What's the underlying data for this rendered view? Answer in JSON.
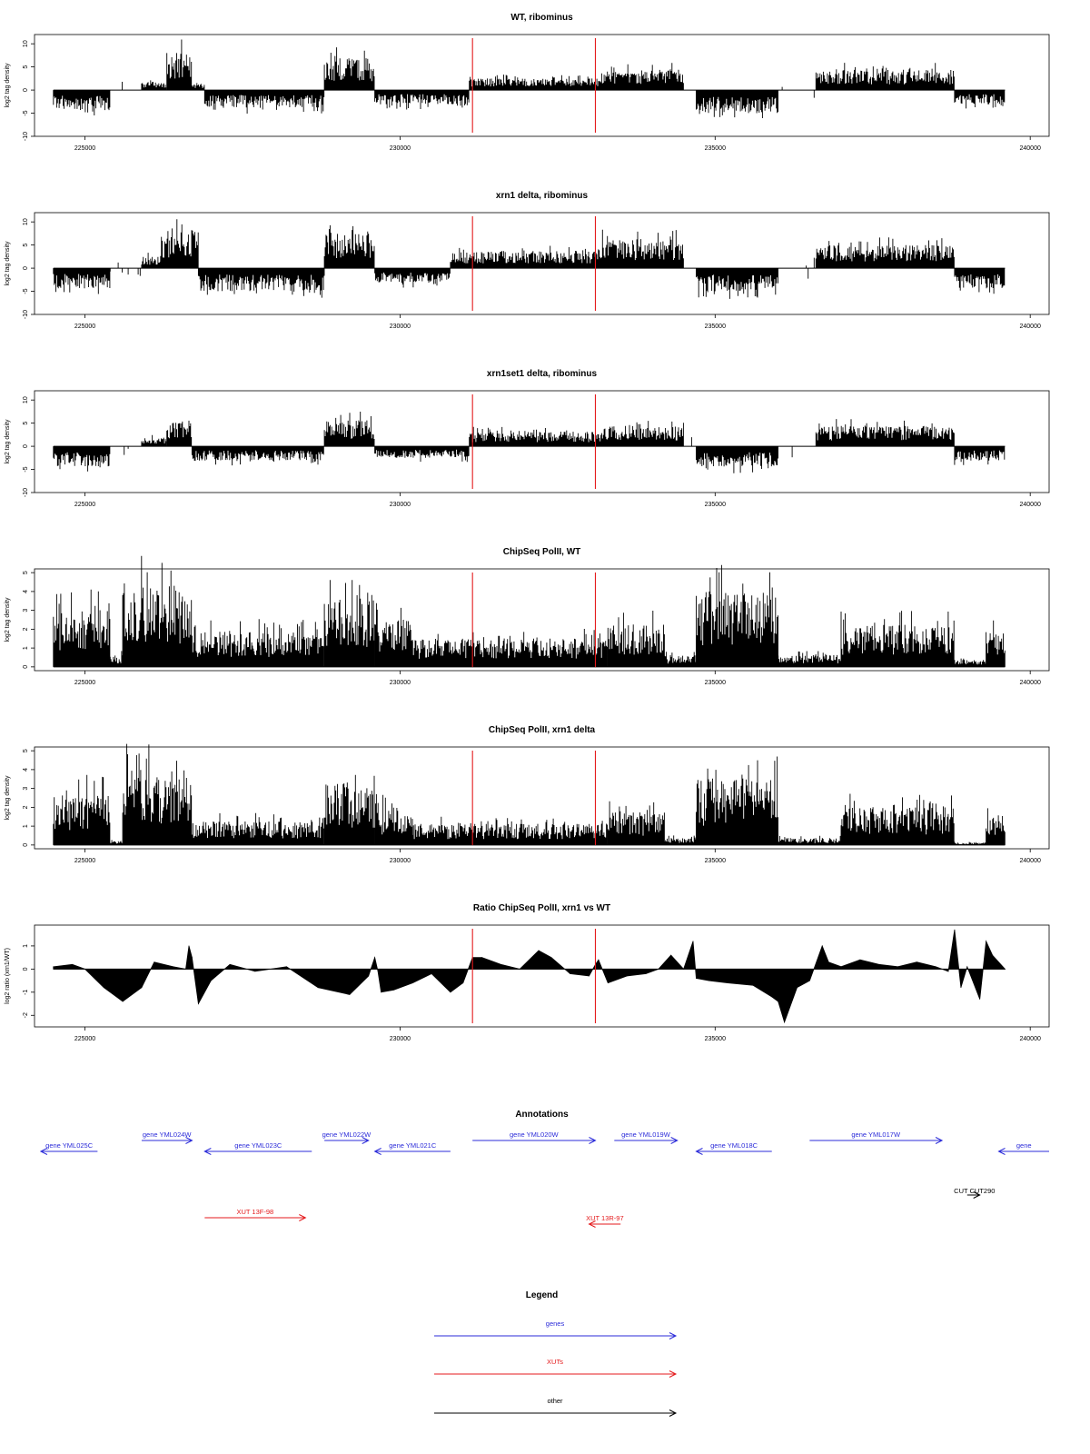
{
  "figure_title": "",
  "accent_colors": {
    "bars": "#000000",
    "markers": "#e41a1c",
    "genes": "#2b2bd9",
    "xuts": "#e41a1c",
    "other": "#000000"
  },
  "markers_x": [
    231150,
    233100
  ],
  "x_axis": {
    "range": [
      224200,
      240300
    ],
    "ticks": [
      225000,
      230000,
      235000,
      240000
    ]
  },
  "chart_data": [
    {
      "type": "bar",
      "title": "WT, ribominus",
      "ylabel": "log2 tag density",
      "ylim": [
        -10,
        12
      ],
      "yticks": [
        -10,
        -5,
        0,
        5,
        10
      ],
      "baseline": 0,
      "segments": [
        {
          "x": [
            224500,
            225400
          ],
          "y": -3.5
        },
        {
          "x": [
            225400,
            225900
          ],
          "y": 0
        },
        {
          "x": [
            225900,
            226300
          ],
          "y": 1.5
        },
        {
          "x": [
            226300,
            226700
          ],
          "y": 6.5
        },
        {
          "x": [
            226700,
            226900
          ],
          "y": 1.0
        },
        {
          "x": [
            226900,
            228800
          ],
          "y": -3.0
        },
        {
          "x": [
            228800,
            229600
          ],
          "y": 5.5
        },
        {
          "x": [
            229600,
            231100
          ],
          "y": -2.5
        },
        {
          "x": [
            231100,
            233200
          ],
          "y": 2.0
        },
        {
          "x": [
            233200,
            234500
          ],
          "y": 3.5
        },
        {
          "x": [
            234500,
            234700
          ],
          "y": 0
        },
        {
          "x": [
            234700,
            236000
          ],
          "y": -4.0
        },
        {
          "x": [
            236000,
            236600
          ],
          "y": 0
        },
        {
          "x": [
            236600,
            238800
          ],
          "y": 3.5
        },
        {
          "x": [
            238800,
            239600
          ],
          "y": -2.5
        }
      ]
    },
    {
      "type": "bar",
      "title": "xrn1 delta, ribominus",
      "ylabel": "log2 tag density",
      "ylim": [
        -10,
        12
      ],
      "yticks": [
        -10,
        -5,
        0,
        5,
        10
      ],
      "baseline": 0,
      "segments": [
        {
          "x": [
            224500,
            225400
          ],
          "y": -3.5
        },
        {
          "x": [
            225400,
            225900
          ],
          "y": 0
        },
        {
          "x": [
            225900,
            226200
          ],
          "y": 2.0
        },
        {
          "x": [
            226200,
            226800
          ],
          "y": 6.5
        },
        {
          "x": [
            226800,
            228800
          ],
          "y": -4.0
        },
        {
          "x": [
            228800,
            229600
          ],
          "y": 6.0
        },
        {
          "x": [
            229600,
            230800
          ],
          "y": -2.5
        },
        {
          "x": [
            230800,
            233200
          ],
          "y": 3.0
        },
        {
          "x": [
            233200,
            234500
          ],
          "y": 5.0
        },
        {
          "x": [
            234500,
            234700
          ],
          "y": 0
        },
        {
          "x": [
            234700,
            236000
          ],
          "y": -4.0
        },
        {
          "x": [
            236000,
            236600
          ],
          "y": 0
        },
        {
          "x": [
            236600,
            238800
          ],
          "y": 4.0
        },
        {
          "x": [
            238800,
            239600
          ],
          "y": -3.5
        }
      ]
    },
    {
      "type": "bar",
      "title": "xrn1set1 delta, ribominus",
      "ylabel": "log2 tag density",
      "ylim": [
        -10,
        12
      ],
      "yticks": [
        -10,
        -5,
        0,
        5,
        10
      ],
      "baseline": 0,
      "segments": [
        {
          "x": [
            224500,
            225400
          ],
          "y": -3.5
        },
        {
          "x": [
            225400,
            225900
          ],
          "y": 0
        },
        {
          "x": [
            225900,
            226300
          ],
          "y": 1.5
        },
        {
          "x": [
            226300,
            226700
          ],
          "y": 4.5
        },
        {
          "x": [
            226700,
            228800
          ],
          "y": -2.5
        },
        {
          "x": [
            228800,
            229600
          ],
          "y": 4.5
        },
        {
          "x": [
            229600,
            231100
          ],
          "y": -2.0
        },
        {
          "x": [
            231100,
            233200
          ],
          "y": 2.5
        },
        {
          "x": [
            233200,
            234500
          ],
          "y": 3.5
        },
        {
          "x": [
            234500,
            234700
          ],
          "y": 0
        },
        {
          "x": [
            234700,
            236000
          ],
          "y": -3.5
        },
        {
          "x": [
            236000,
            236600
          ],
          "y": 0
        },
        {
          "x": [
            236600,
            238800
          ],
          "y": 3.5
        },
        {
          "x": [
            238800,
            239600
          ],
          "y": -2.5
        }
      ]
    },
    {
      "type": "bar",
      "title": "ChipSeq PolII, WT",
      "ylabel": "log2 tag density",
      "ylim": [
        -0.2,
        5.2
      ],
      "yticks": [
        0,
        1,
        2,
        3,
        4,
        5
      ],
      "baseline": 0,
      "segments": [
        {
          "x": [
            224500,
            225400
          ],
          "y": 2.5
        },
        {
          "x": [
            225400,
            225600
          ],
          "y": 0.5
        },
        {
          "x": [
            225600,
            226700
          ],
          "y": 3.5
        },
        {
          "x": [
            226700,
            228800
          ],
          "y": 1.5
        },
        {
          "x": [
            228800,
            229600
          ],
          "y": 3.0
        },
        {
          "x": [
            229600,
            230200
          ],
          "y": 2.0
        },
        {
          "x": [
            230200,
            233300
          ],
          "y": 1.2
        },
        {
          "x": [
            233300,
            234200
          ],
          "y": 1.8
        },
        {
          "x": [
            234200,
            234700
          ],
          "y": 0.5
        },
        {
          "x": [
            234700,
            236000
          ],
          "y": 3.2
        },
        {
          "x": [
            236000,
            237000
          ],
          "y": 0.5
        },
        {
          "x": [
            237000,
            238800
          ],
          "y": 1.8
        },
        {
          "x": [
            238800,
            239300
          ],
          "y": 0.3
        },
        {
          "x": [
            239300,
            239600
          ],
          "y": 1.5
        }
      ]
    },
    {
      "type": "bar",
      "title": "ChipSeq PolII, xrn1 delta",
      "ylabel": "log2 tag density",
      "ylim": [
        -0.2,
        5.2
      ],
      "yticks": [
        0,
        1,
        2,
        3,
        4,
        5
      ],
      "baseline": 0,
      "segments": [
        {
          "x": [
            224500,
            225400
          ],
          "y": 2.2
        },
        {
          "x": [
            225400,
            225600
          ],
          "y": 0.2
        },
        {
          "x": [
            225600,
            226700
          ],
          "y": 3.2
        },
        {
          "x": [
            226700,
            228800
          ],
          "y": 1.0
        },
        {
          "x": [
            228800,
            229600
          ],
          "y": 2.6
        },
        {
          "x": [
            229600,
            230200
          ],
          "y": 1.6
        },
        {
          "x": [
            230200,
            233300
          ],
          "y": 0.9
        },
        {
          "x": [
            233300,
            234200
          ],
          "y": 1.4
        },
        {
          "x": [
            234200,
            234700
          ],
          "y": 0.3
        },
        {
          "x": [
            234700,
            236000
          ],
          "y": 2.8
        },
        {
          "x": [
            236000,
            237000
          ],
          "y": 0.3
        },
        {
          "x": [
            237000,
            238800
          ],
          "y": 1.6
        },
        {
          "x": [
            238800,
            239300
          ],
          "y": 0.1
        },
        {
          "x": [
            239300,
            239600
          ],
          "y": 1.3
        }
      ]
    },
    {
      "type": "area",
      "title": "Ratio ChipSeq PolII, xrn1 vs WT",
      "ylabel": "log2 ratio (xrn1/WT)",
      "ylim": [
        -2.5,
        1.9
      ],
      "yticks": [
        -2,
        -1,
        0,
        1
      ],
      "baseline": 0,
      "x": [
        224500,
        224800,
        225000,
        225300,
        225600,
        225900,
        226100,
        226400,
        226600,
        226650,
        226700,
        226800,
        227000,
        227300,
        227700,
        228200,
        228700,
        229200,
        229500,
        229600,
        229650,
        229700,
        229900,
        230200,
        230500,
        230800,
        231000,
        231150,
        231300,
        231600,
        231900,
        232200,
        232400,
        232700,
        233000,
        233100,
        233150,
        233300,
        233600,
        233900,
        234100,
        234300,
        234500,
        234650,
        234700,
        234900,
        235200,
        235600,
        235900,
        236000,
        236100,
        236300,
        236500,
        236700,
        236800,
        237000,
        237300,
        237600,
        237900,
        238200,
        238500,
        238700,
        238800,
        238900,
        239000,
        239200,
        239300,
        239400,
        239600
      ],
      "y": [
        0.1,
        0.2,
        0.0,
        -0.8,
        -1.4,
        -0.8,
        0.3,
        0.1,
        0.0,
        1.0,
        0.5,
        -1.5,
        -0.5,
        0.2,
        -0.1,
        0.1,
        -0.8,
        -1.1,
        -0.3,
        0.5,
        -0.1,
        -1.0,
        -0.9,
        -0.6,
        -0.2,
        -1.0,
        -0.6,
        0.5,
        0.5,
        0.2,
        0.0,
        0.8,
        0.5,
        -0.2,
        -0.3,
        0.2,
        0.4,
        -0.6,
        -0.3,
        -0.2,
        0.0,
        0.6,
        0.0,
        1.2,
        -0.4,
        -0.5,
        -0.6,
        -0.7,
        -1.2,
        -1.4,
        -2.3,
        -0.8,
        -0.5,
        1.0,
        0.3,
        0.1,
        0.4,
        0.2,
        0.1,
        0.3,
        0.1,
        -0.1,
        1.7,
        -0.8,
        0.1,
        -1.3,
        1.2,
        0.6,
        0.0
      ]
    }
  ],
  "annotations": {
    "title": "Annotations",
    "features": [
      {
        "label": "gene YML025C",
        "kind": "genes",
        "dir": "rev",
        "x1": 224300,
        "x2": 225200,
        "row": 1
      },
      {
        "label": "gene YML024W",
        "kind": "genes",
        "dir": "fwd",
        "x1": 225900,
        "x2": 226700,
        "row": 0
      },
      {
        "label": "gene YML023C",
        "kind": "genes",
        "dir": "rev",
        "x1": 226900,
        "x2": 228600,
        "row": 1
      },
      {
        "label": "gene YML022W",
        "kind": "genes",
        "dir": "fwd",
        "x1": 228800,
        "x2": 229500,
        "row": 0
      },
      {
        "label": "gene YML021C",
        "kind": "genes",
        "dir": "rev",
        "x1": 229600,
        "x2": 230800,
        "row": 1
      },
      {
        "label": "gene YML020W",
        "kind": "genes",
        "dir": "fwd",
        "x1": 231150,
        "x2": 233100,
        "row": 0
      },
      {
        "label": "gene YML019W",
        "kind": "genes",
        "dir": "fwd",
        "x1": 233400,
        "x2": 234400,
        "row": 0
      },
      {
        "label": "gene YML018C",
        "kind": "genes",
        "dir": "rev",
        "x1": 234700,
        "x2": 235900,
        "row": 1
      },
      {
        "label": "gene YML017W",
        "kind": "genes",
        "dir": "fwd",
        "x1": 236500,
        "x2": 238600,
        "row": 0
      },
      {
        "label": "gene",
        "kind": "genes",
        "dir": "rev",
        "x1": 239500,
        "x2": 240300,
        "row": 1
      },
      {
        "label": "XUT 13F-98",
        "kind": "xuts",
        "dir": "fwd",
        "x1": 226900,
        "x2": 228500,
        "row": 2
      },
      {
        "label": "XUT 13R-97",
        "kind": "xuts",
        "dir": "rev",
        "x1": 233000,
        "x2": 233500,
        "row": 3
      },
      {
        "label": "CUT CUT290",
        "kind": "other",
        "dir": "fwd",
        "x1": 239000,
        "x2": 239200,
        "row": 4
      }
    ]
  },
  "legend": {
    "title": "Legend",
    "items": [
      {
        "label": "genes",
        "kind": "genes"
      },
      {
        "label": "XUTs",
        "kind": "xuts"
      },
      {
        "label": "other",
        "kind": "other"
      }
    ]
  }
}
